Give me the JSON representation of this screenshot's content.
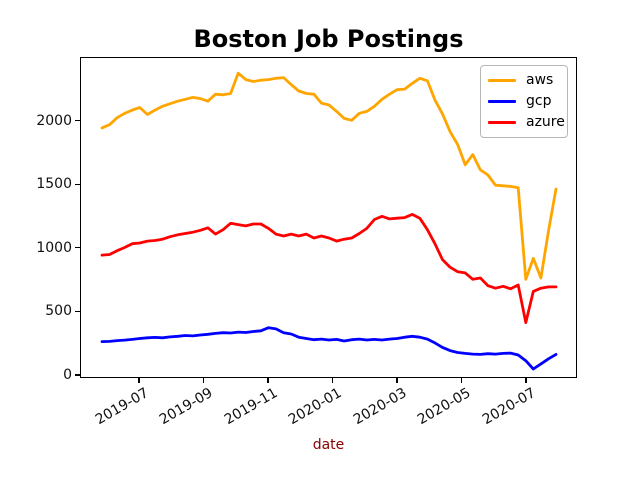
{
  "figure": {
    "title": "Boston Job Postings",
    "xlabel": "date",
    "xlabel_color": "#8B0000",
    "background": "#ffffff",
    "axis_color": "#000000"
  },
  "legend": {
    "position": "upper right",
    "entries": [
      {
        "label": "aws",
        "color": "#FFA500"
      },
      {
        "label": "gcp",
        "color": "#0000FF"
      },
      {
        "label": "azure",
        "color": "#FF0000"
      }
    ]
  },
  "axes": {
    "y_tick_values": [
      0,
      500,
      1000,
      1500,
      2000
    ],
    "x_tick_labels": [
      "2019-07",
      "2019-09",
      "2019-11",
      "2020-01",
      "2020-03",
      "2020-05",
      "2020-07"
    ]
  },
  "chart_data": {
    "type": "line",
    "title": "Boston Job Postings",
    "xlabel": "date",
    "ylabel": "",
    "grid": false,
    "legend_position": "upper right",
    "ylim": [
      -60,
      2480
    ],
    "y_ticks": [
      0,
      500,
      1000,
      1500,
      2000
    ],
    "x_tick_labels": [
      "2019-07",
      "2019-09",
      "2019-11",
      "2020-01",
      "2020-03",
      "2020-05",
      "2020-07"
    ],
    "x": [
      "2019-05-26",
      "2019-06-02",
      "2019-06-09",
      "2019-06-16",
      "2019-06-23",
      "2019-06-30",
      "2019-07-07",
      "2019-07-14",
      "2019-07-21",
      "2019-07-28",
      "2019-08-04",
      "2019-08-11",
      "2019-08-18",
      "2019-08-25",
      "2019-09-01",
      "2019-09-08",
      "2019-09-15",
      "2019-09-22",
      "2019-09-29",
      "2019-10-06",
      "2019-10-13",
      "2019-10-20",
      "2019-10-27",
      "2019-11-03",
      "2019-11-10",
      "2019-11-17",
      "2019-11-24",
      "2019-12-01",
      "2019-12-08",
      "2019-12-15",
      "2019-12-22",
      "2019-12-29",
      "2020-01-05",
      "2020-01-12",
      "2020-01-19",
      "2020-01-26",
      "2020-02-02",
      "2020-02-09",
      "2020-02-16",
      "2020-02-23",
      "2020-03-01",
      "2020-03-08",
      "2020-03-15",
      "2020-03-22",
      "2020-03-29",
      "2020-04-05",
      "2020-04-12",
      "2020-04-19",
      "2020-04-26",
      "2020-05-03",
      "2020-05-10",
      "2020-05-17",
      "2020-05-24",
      "2020-05-31",
      "2020-06-07",
      "2020-06-14",
      "2020-06-21",
      "2020-06-28",
      "2020-07-05",
      "2020-07-12",
      "2020-07-19"
    ],
    "series": [
      {
        "name": "aws",
        "color": "#FFA500",
        "values": [
          1950,
          1975,
          2030,
          2065,
          2090,
          2110,
          2055,
          2090,
          2120,
          2140,
          2160,
          2175,
          2190,
          2180,
          2160,
          2215,
          2210,
          2220,
          2380,
          2330,
          2315,
          2325,
          2330,
          2340,
          2345,
          2290,
          2240,
          2220,
          2215,
          2145,
          2130,
          2080,
          2025,
          2010,
          2065,
          2080,
          2120,
          2175,
          2215,
          2250,
          2255,
          2300,
          2340,
          2320,
          2170,
          2060,
          1920,
          1820,
          1660,
          1740,
          1620,
          1580,
          1500,
          1495,
          1490,
          1480,
          760,
          925,
          770,
          1140,
          1470
        ]
      },
      {
        "name": "gcp",
        "color": "#0000FF",
        "values": [
          270,
          272,
          278,
          282,
          288,
          295,
          300,
          303,
          300,
          307,
          312,
          318,
          315,
          322,
          328,
          335,
          340,
          338,
          345,
          342,
          350,
          355,
          380,
          370,
          340,
          330,
          305,
          295,
          285,
          290,
          283,
          288,
          275,
          285,
          290,
          283,
          288,
          283,
          290,
          295,
          305,
          312,
          305,
          290,
          260,
          225,
          200,
          185,
          178,
          172,
          170,
          175,
          172,
          178,
          180,
          165,
          120,
          55,
          95,
          135,
          170
        ]
      },
      {
        "name": "azure",
        "color": "#FF0000",
        "values": [
          950,
          955,
          985,
          1010,
          1040,
          1045,
          1060,
          1065,
          1075,
          1095,
          1110,
          1120,
          1130,
          1145,
          1165,
          1115,
          1150,
          1200,
          1190,
          1180,
          1195,
          1195,
          1160,
          1115,
          1100,
          1115,
          1100,
          1115,
          1085,
          1100,
          1085,
          1060,
          1075,
          1085,
          1120,
          1160,
          1230,
          1255,
          1235,
          1240,
          1245,
          1270,
          1240,
          1150,
          1040,
          915,
          855,
          820,
          810,
          760,
          770,
          710,
          690,
          705,
          685,
          715,
          420,
          665,
          690,
          700,
          700
        ]
      }
    ]
  }
}
